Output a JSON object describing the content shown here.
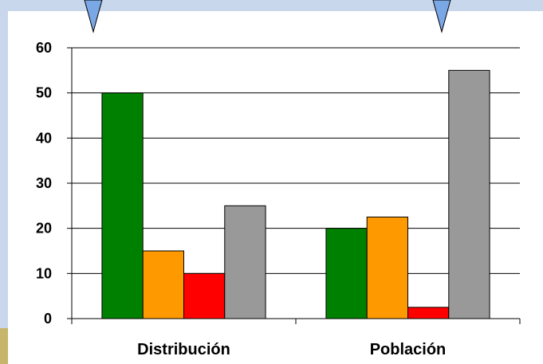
{
  "colors": {
    "slide_background": "#c9d7ec",
    "panel_background": "#ffffff",
    "pointer_fill": "#7aa7e6",
    "accent_strip": "#c6b56a"
  },
  "chart_data": {
    "type": "bar",
    "categories": [
      "Distribución",
      "Población"
    ],
    "series": [
      {
        "color": "#008000",
        "values": [
          50,
          20
        ]
      },
      {
        "color": "#ff9900",
        "values": [
          15,
          22.5
        ]
      },
      {
        "color": "#ff0000",
        "values": [
          10,
          2.5
        ]
      },
      {
        "color": "#999999",
        "values": [
          25,
          55
        ]
      }
    ],
    "ylim": [
      0,
      60
    ],
    "yticks": [
      0,
      10,
      20,
      30,
      40,
      50,
      60
    ],
    "grid": true,
    "legend": "none"
  }
}
